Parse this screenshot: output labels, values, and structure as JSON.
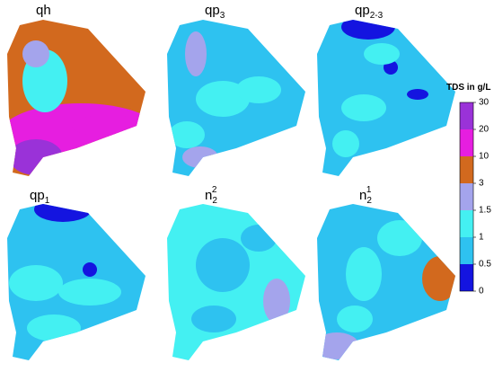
{
  "panels": [
    {
      "base": "qh"
    },
    {
      "base": "qp",
      "sub": "3"
    },
    {
      "base": "qp",
      "sub": "2-3"
    },
    {
      "base": "qp",
      "sub": "1"
    },
    {
      "base": "n",
      "sub": "2",
      "sup": "2"
    },
    {
      "base": "n",
      "sub": "2",
      "sup": "1"
    }
  ],
  "legend": {
    "title": "TDS in g/L",
    "labels": [
      "30",
      "20",
      "10",
      "3",
      "1.5",
      "1",
      "0.5",
      "0"
    ],
    "colors": [
      "#9a32d8",
      "#e61ee0",
      "#d2691e",
      "#a4a4ec",
      "#44f0f2",
      "#2ec2f0",
      "#1414e0"
    ]
  }
}
